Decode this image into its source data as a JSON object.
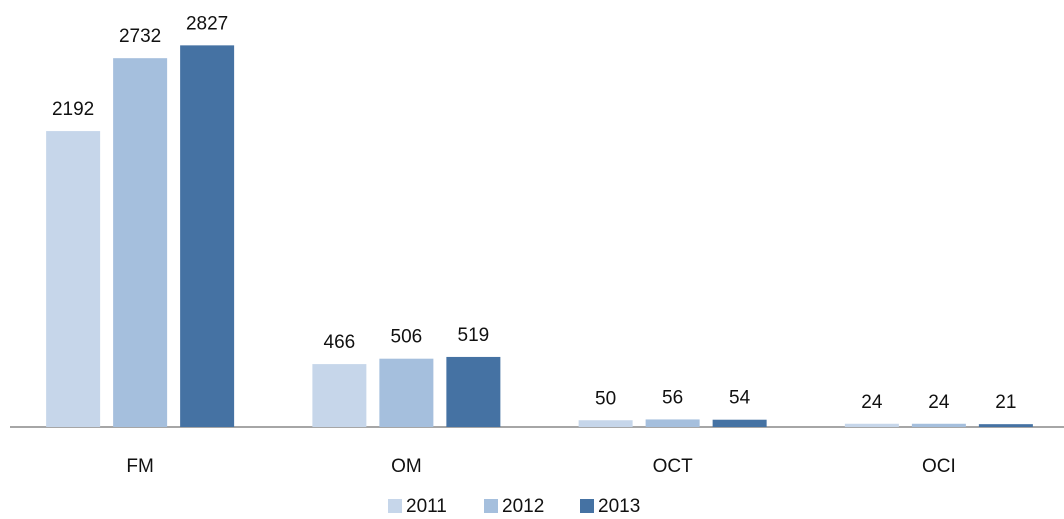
{
  "chart_data": {
    "type": "bar",
    "categories": [
      "FM",
      "OM",
      "OCT",
      "OCI"
    ],
    "series": [
      {
        "name": "2011",
        "color": "#c6d6ea",
        "values": [
          2192,
          466,
          50,
          24
        ]
      },
      {
        "name": "2012",
        "color": "#a5bfdd",
        "values": [
          2732,
          506,
          56,
          24
        ]
      },
      {
        "name": "2013",
        "color": "#4572a3",
        "values": [
          2827,
          519,
          54,
          21
        ]
      }
    ],
    "ylim": [
      0,
      3000
    ],
    "legend": "bottom"
  }
}
